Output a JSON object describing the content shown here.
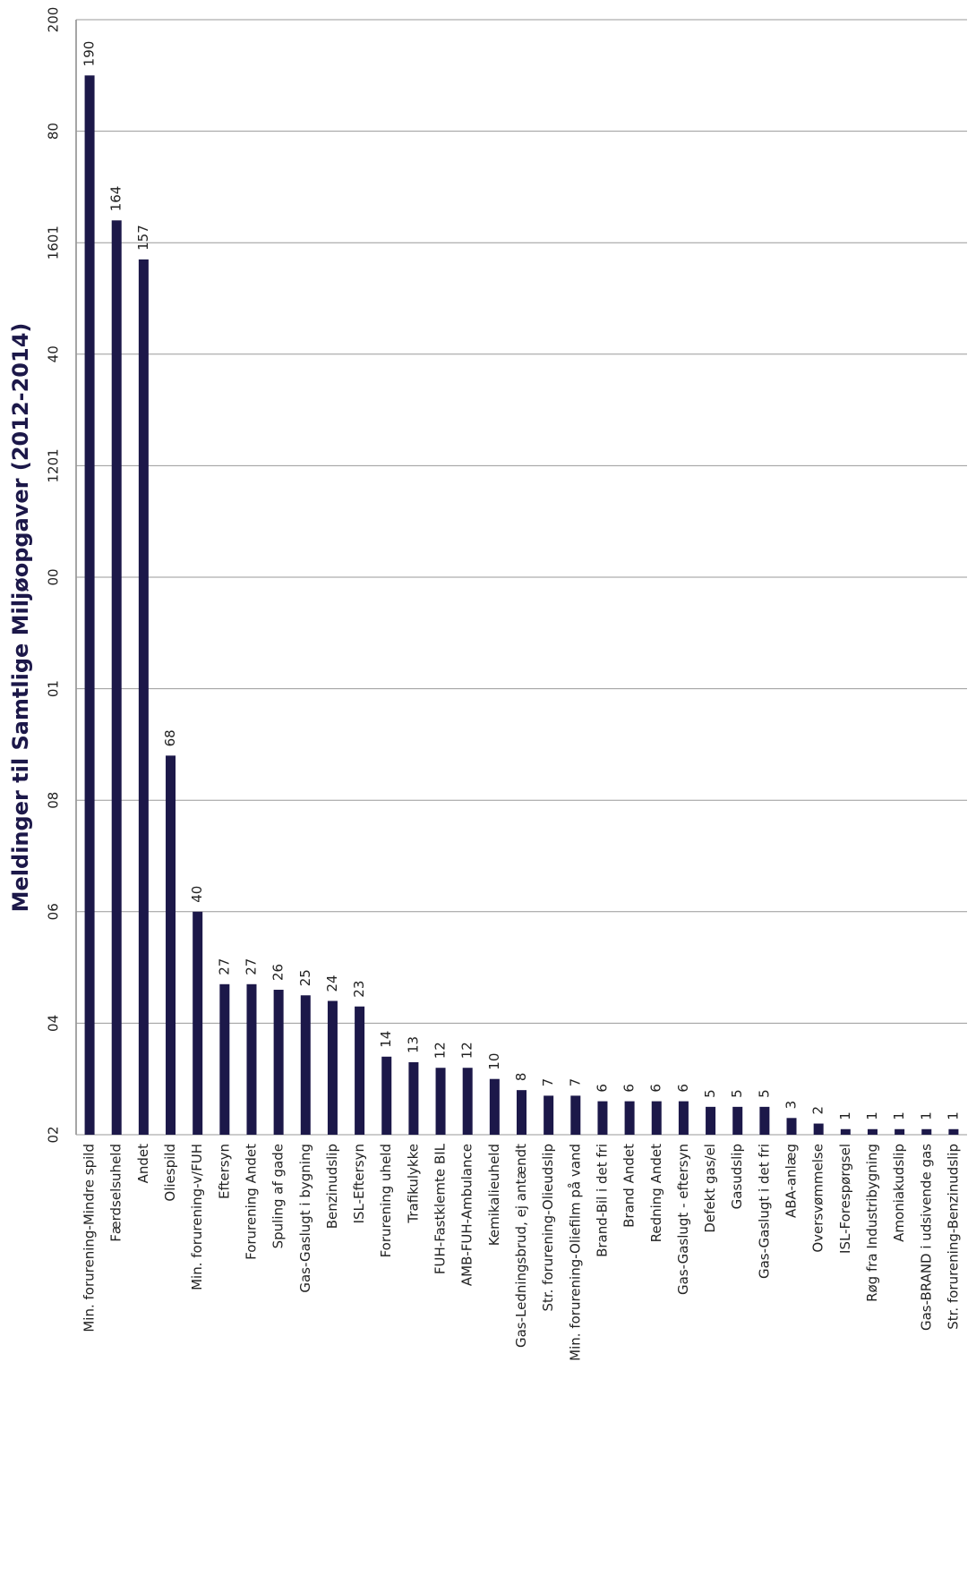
{
  "chart_data": {
    "type": "bar",
    "title": "Meldinger til Samtlige Miljøopgaver (2012-2014)",
    "categories": [
      "Min. forurening-Mindre spild",
      "Færdselsuheld",
      "Andet",
      "Oliespild",
      "Min. forurening-v/FUH",
      "Eftersyn",
      "Forurening Andet",
      "Spuling af gade",
      "Gas-Gaslugt i bygning",
      "Benzinudslip",
      "ISL-Eftersyn",
      "Forurening uheld",
      "Trafikulykke",
      "FUH-Fastklemte BIL",
      "AMB-FUH-Ambulance",
      "Kemikalieuheld",
      "Gas-Ledningsbrud, ej antændt",
      "Str. forurening-Olieudslip",
      "Min. forurening-Oliefilm på vand",
      "Brand-Bil i det fri",
      "Brand Andet",
      "Redning Andet",
      "Gas-Gaslugt - eftersyn",
      "Defekt gas/el",
      "Gasudslip",
      "Gas-Gaslugt i det fri",
      "ABA-anlæg",
      "Oversvømmelse",
      "ISL-Forespørgsel",
      "Røg fra Industribygning",
      "Amoniakudslip",
      "Gas-BRAND i udsivende gas",
      "Str. forurening-Benzinudslip"
    ],
    "values": [
      190,
      164,
      157,
      68,
      40,
      27,
      27,
      26,
      25,
      24,
      23,
      14,
      13,
      12,
      12,
      10,
      8,
      7,
      7,
      6,
      6,
      6,
      6,
      5,
      5,
      5,
      3,
      2,
      1,
      1,
      1,
      1,
      1
    ],
    "color": "#1c1849",
    "ylim": [
      0,
      200
    ],
    "yticks": [
      {
        "value": 0,
        "label": "02"
      },
      {
        "value": 20,
        "label": "04"
      },
      {
        "value": 40,
        "label": "06"
      },
      {
        "value": 60,
        "label": "08"
      },
      {
        "value": 80,
        "label": "01"
      },
      {
        "value": 100,
        "label": "00"
      },
      {
        "value": 120,
        "label": "1201"
      },
      {
        "value": 140,
        "label": "40"
      },
      {
        "value": 160,
        "label": "1601"
      },
      {
        "value": 180,
        "label": "80"
      },
      200
    ],
    "grid": true
  }
}
